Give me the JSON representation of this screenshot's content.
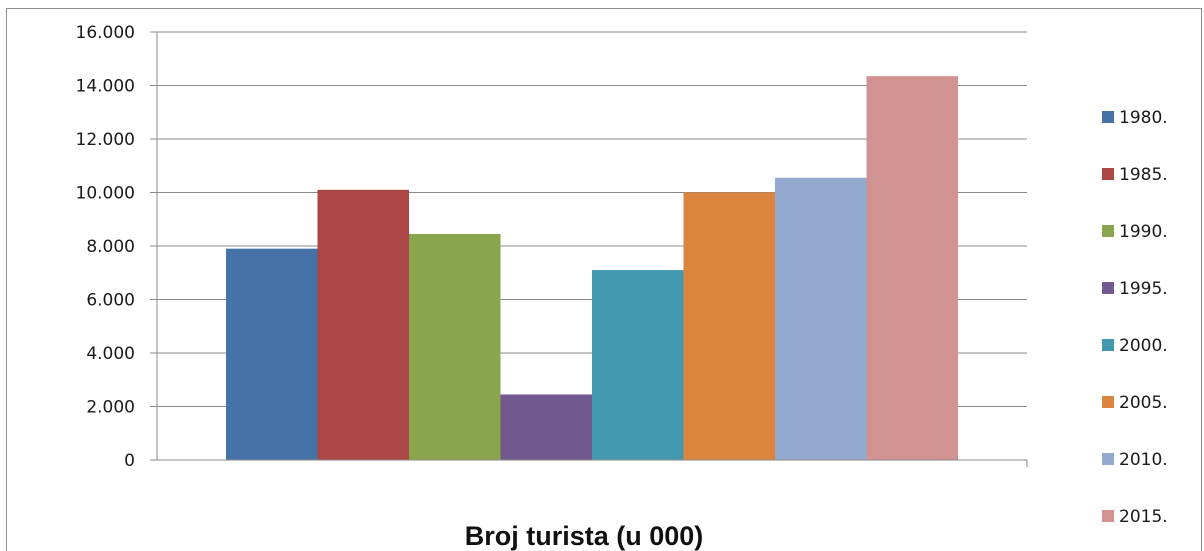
{
  "chart_data": {
    "type": "bar",
    "title": "",
    "xlabel": "Broj turista  (u 000)",
    "ylabel": "",
    "ylim": [
      0,
      16000
    ],
    "y_ticks": [
      "0",
      "2.000",
      "4.000",
      "6.000",
      "8.000",
      "10.000",
      "12.000",
      "14.000",
      "16.000"
    ],
    "y_tick_values": [
      0,
      2000,
      4000,
      6000,
      8000,
      10000,
      12000,
      14000,
      16000
    ],
    "grid": true,
    "legend_position": "right",
    "categories": [
      ""
    ],
    "series": [
      {
        "name": "1980.",
        "values": [
          7900
        ],
        "color": "#4572A7"
      },
      {
        "name": "1985.",
        "values": [
          10100
        ],
        "color": "#AA4643"
      },
      {
        "name": "1990.",
        "values": [
          8450
        ],
        "color": "#89A54E"
      },
      {
        "name": "1995.",
        "values": [
          2450
        ],
        "color": "#71588F"
      },
      {
        "name": "2000.",
        "values": [
          7100
        ],
        "color": "#4198AF"
      },
      {
        "name": "2005.",
        "values": [
          10000
        ],
        "color": "#DB843D"
      },
      {
        "name": "2010.",
        "values": [
          10550
        ],
        "color": "#93A9CF"
      },
      {
        "name": "2015.",
        "values": [
          14350
        ],
        "color": "#D19392"
      }
    ]
  }
}
